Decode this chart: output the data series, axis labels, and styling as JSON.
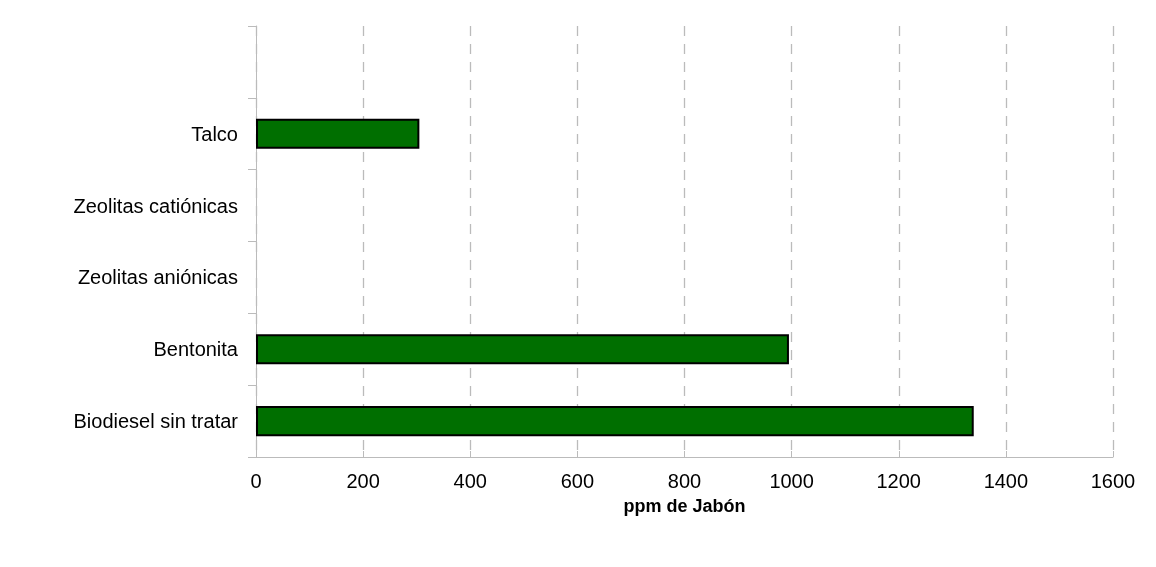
{
  "chart_data": {
    "type": "bar",
    "orientation": "horizontal",
    "xlabel": "ppm de Jabón",
    "categories": [
      null,
      "Talco",
      "Zeolitas catiónicas",
      "Zeolitas aniónicas",
      "Bentonita",
      "Biodiesel sin tratar"
    ],
    "values": [
      null,
      305,
      null,
      null,
      995,
      1340
    ],
    "color": "#006f00",
    "xlim": [
      0,
      1600
    ],
    "xticks": [
      0,
      200,
      400,
      600,
      800,
      1000,
      1200,
      1400,
      1600
    ],
    "grid": "x"
  }
}
